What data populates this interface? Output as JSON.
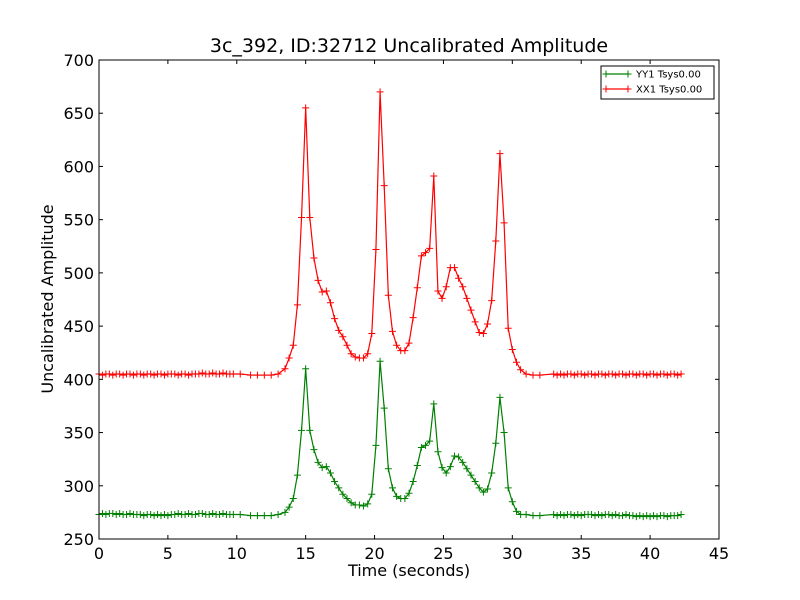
{
  "chart_data": {
    "type": "line",
    "title": "3c_392, ID:32712 Uncalibrated Amplitude",
    "xlabel": "Time (seconds)",
    "ylabel": "Uncalibrated Amplitude",
    "xlim": [
      0,
      45
    ],
    "ylim": [
      250,
      700
    ],
    "xticks": [
      0,
      5,
      10,
      15,
      20,
      25,
      30,
      35,
      40,
      45
    ],
    "yticks": [
      250,
      300,
      350,
      400,
      450,
      500,
      550,
      600,
      650,
      700
    ],
    "xtick_labels": [
      "0",
      "5",
      "10",
      "15",
      "20",
      "25",
      "30",
      "35",
      "40",
      "45"
    ],
    "ytick_labels": [
      "250",
      "300",
      "350",
      "400",
      "450",
      "500",
      "550",
      "600",
      "650",
      "700"
    ],
    "grid": false,
    "legend_position": "top-right",
    "marker": "plus",
    "series": [
      {
        "name": "YY1 Tsys0.00",
        "color": "#008000",
        "points": [
          [
            0,
            273
          ],
          [
            0.25,
            274
          ],
          [
            0.5,
            273
          ],
          [
            0.75,
            274
          ],
          [
            1,
            274
          ],
          [
            1.25,
            273
          ],
          [
            1.5,
            274
          ],
          [
            1.75,
            273
          ],
          [
            2,
            273
          ],
          [
            2.25,
            274
          ],
          [
            2.5,
            273
          ],
          [
            2.75,
            273
          ],
          [
            3,
            273
          ],
          [
            3.25,
            272
          ],
          [
            3.5,
            273
          ],
          [
            3.75,
            273
          ],
          [
            4,
            272
          ],
          [
            4.25,
            273
          ],
          [
            4.5,
            272
          ],
          [
            4.75,
            273
          ],
          [
            5,
            272
          ],
          [
            5.25,
            273
          ],
          [
            5.5,
            273
          ],
          [
            5.75,
            274
          ],
          [
            6,
            273
          ],
          [
            6.25,
            273
          ],
          [
            6.5,
            274
          ],
          [
            6.75,
            273
          ],
          [
            7,
            273
          ],
          [
            7.25,
            274
          ],
          [
            7.5,
            274
          ],
          [
            7.75,
            273
          ],
          [
            8,
            273
          ],
          [
            8.25,
            274
          ],
          [
            8.5,
            273
          ],
          [
            8.75,
            273
          ],
          [
            9,
            274
          ],
          [
            9.25,
            273
          ],
          [
            9.5,
            273
          ],
          [
            9.75,
            273
          ],
          [
            10.25,
            273
          ],
          [
            11,
            272
          ],
          [
            11.5,
            272
          ],
          [
            12,
            272
          ],
          [
            12.5,
            272
          ],
          [
            13,
            273
          ],
          [
            13.5,
            275
          ],
          [
            13.8,
            280
          ],
          [
            14.1,
            288
          ],
          [
            14.4,
            310
          ],
          [
            14.7,
            352
          ],
          [
            15.0,
            410
          ],
          [
            15.3,
            352
          ],
          [
            15.6,
            334
          ],
          [
            15.9,
            322
          ],
          [
            16.2,
            317
          ],
          [
            16.5,
            318
          ],
          [
            16.8,
            312
          ],
          [
            17.1,
            304
          ],
          [
            17.4,
            298
          ],
          [
            17.7,
            292
          ],
          [
            18.0,
            288
          ],
          [
            18.3,
            284
          ],
          [
            18.6,
            282
          ],
          [
            18.9,
            282
          ],
          [
            19.2,
            281
          ],
          [
            19.5,
            283
          ],
          [
            19.8,
            292
          ],
          [
            20.1,
            338
          ],
          [
            20.4,
            417
          ],
          [
            20.7,
            373
          ],
          [
            21.0,
            316
          ],
          [
            21.3,
            298
          ],
          [
            21.6,
            290
          ],
          [
            21.9,
            288
          ],
          [
            22.2,
            288
          ],
          [
            22.5,
            293
          ],
          [
            22.8,
            304
          ],
          [
            23.1,
            319
          ],
          [
            23.4,
            336
          ],
          [
            23.7,
            338
          ],
          [
            24.0,
            342
          ],
          [
            24.3,
            377
          ],
          [
            24.6,
            332
          ],
          [
            24.9,
            317
          ],
          [
            25.2,
            312
          ],
          [
            25.5,
            318
          ],
          [
            25.8,
            328
          ],
          [
            26.1,
            327
          ],
          [
            26.4,
            322
          ],
          [
            26.7,
            316
          ],
          [
            27.0,
            310
          ],
          [
            27.3,
            304
          ],
          [
            27.6,
            298
          ],
          [
            27.9,
            294
          ],
          [
            28.2,
            297
          ],
          [
            28.5,
            312
          ],
          [
            28.8,
            340
          ],
          [
            29.1,
            383
          ],
          [
            29.4,
            350
          ],
          [
            29.7,
            298
          ],
          [
            30.0,
            285
          ],
          [
            30.3,
            276
          ],
          [
            30.6,
            273
          ],
          [
            31,
            273
          ],
          [
            31.5,
            272
          ],
          [
            32,
            272
          ],
          [
            33,
            273
          ],
          [
            33.25,
            272
          ],
          [
            33.5,
            273
          ],
          [
            33.75,
            272
          ],
          [
            34,
            273
          ],
          [
            34.25,
            273
          ],
          [
            34.5,
            272
          ],
          [
            34.75,
            273
          ],
          [
            35,
            272
          ],
          [
            35.25,
            273
          ],
          [
            35.5,
            273
          ],
          [
            35.75,
            273
          ],
          [
            36,
            272
          ],
          [
            36.25,
            273
          ],
          [
            36.5,
            272
          ],
          [
            36.75,
            273
          ],
          [
            37,
            273
          ],
          [
            37.25,
            272
          ],
          [
            37.5,
            273
          ],
          [
            37.75,
            272
          ],
          [
            38,
            272
          ],
          [
            38.25,
            273
          ],
          [
            38.5,
            272
          ],
          [
            38.75,
            272
          ],
          [
            39,
            271
          ],
          [
            39.25,
            272
          ],
          [
            39.5,
            271
          ],
          [
            39.75,
            272
          ],
          [
            40,
            271
          ],
          [
            40.25,
            272
          ],
          [
            40.5,
            271
          ],
          [
            40.75,
            272
          ],
          [
            41,
            272
          ],
          [
            41.25,
            271
          ],
          [
            41.5,
            272
          ],
          [
            41.75,
            272
          ],
          [
            42,
            272
          ],
          [
            42.25,
            273
          ]
        ]
      },
      {
        "name": "XX1 Tsys0.00",
        "color": "#ff0000",
        "points": [
          [
            0,
            405
          ],
          [
            0.25,
            404
          ],
          [
            0.5,
            405
          ],
          [
            0.75,
            405
          ],
          [
            1,
            404
          ],
          [
            1.25,
            405
          ],
          [
            1.5,
            405
          ],
          [
            1.75,
            404
          ],
          [
            2,
            405
          ],
          [
            2.25,
            405
          ],
          [
            2.5,
            404
          ],
          [
            2.75,
            405
          ],
          [
            3,
            405
          ],
          [
            3.25,
            404
          ],
          [
            3.5,
            405
          ],
          [
            3.75,
            405
          ],
          [
            4,
            404
          ],
          [
            4.25,
            405
          ],
          [
            4.5,
            405
          ],
          [
            4.75,
            404
          ],
          [
            5,
            405
          ],
          [
            5.25,
            405
          ],
          [
            5.5,
            405
          ],
          [
            5.75,
            404
          ],
          [
            6,
            405
          ],
          [
            6.25,
            405
          ],
          [
            6.5,
            404
          ],
          [
            6.75,
            405
          ],
          [
            7,
            405
          ],
          [
            7.25,
            405
          ],
          [
            7.5,
            406
          ],
          [
            7.75,
            405
          ],
          [
            8,
            405
          ],
          [
            8.25,
            406
          ],
          [
            8.5,
            405
          ],
          [
            8.75,
            405
          ],
          [
            9,
            406
          ],
          [
            9.25,
            405
          ],
          [
            9.5,
            405
          ],
          [
            9.75,
            405
          ],
          [
            10.25,
            405
          ],
          [
            11,
            404
          ],
          [
            11.5,
            404
          ],
          [
            12,
            404
          ],
          [
            12.5,
            404
          ],
          [
            13,
            405
          ],
          [
            13.5,
            410
          ],
          [
            13.8,
            420
          ],
          [
            14.1,
            432
          ],
          [
            14.4,
            470
          ],
          [
            14.7,
            552
          ],
          [
            15.0,
            655
          ],
          [
            15.3,
            552
          ],
          [
            15.6,
            514
          ],
          [
            15.9,
            493
          ],
          [
            16.2,
            482
          ],
          [
            16.5,
            483
          ],
          [
            16.8,
            472
          ],
          [
            17.1,
            457
          ],
          [
            17.4,
            446
          ],
          [
            17.7,
            440
          ],
          [
            18.0,
            432
          ],
          [
            18.3,
            424
          ],
          [
            18.6,
            421
          ],
          [
            18.9,
            420
          ],
          [
            19.2,
            420
          ],
          [
            19.5,
            424
          ],
          [
            19.8,
            443
          ],
          [
            20.1,
            522
          ],
          [
            20.4,
            670
          ],
          [
            20.7,
            582
          ],
          [
            21.0,
            479
          ],
          [
            21.3,
            445
          ],
          [
            21.6,
            432
          ],
          [
            21.9,
            427
          ],
          [
            22.2,
            427
          ],
          [
            22.5,
            434
          ],
          [
            22.8,
            458
          ],
          [
            23.1,
            486
          ],
          [
            23.4,
            516
          ],
          [
            23.7,
            519
          ],
          [
            24.0,
            523
          ],
          [
            24.3,
            591
          ],
          [
            24.6,
            483
          ],
          [
            24.9,
            476
          ],
          [
            25.2,
            487
          ],
          [
            25.5,
            505
          ],
          [
            25.8,
            505
          ],
          [
            26.1,
            495
          ],
          [
            26.4,
            487
          ],
          [
            26.7,
            476
          ],
          [
            27.0,
            465
          ],
          [
            27.3,
            454
          ],
          [
            27.6,
            444
          ],
          [
            27.9,
            443
          ],
          [
            28.2,
            452
          ],
          [
            28.5,
            474
          ],
          [
            28.8,
            530
          ],
          [
            29.1,
            612
          ],
          [
            29.4,
            547
          ],
          [
            29.7,
            448
          ],
          [
            30.0,
            428
          ],
          [
            30.3,
            416
          ],
          [
            30.6,
            409
          ],
          [
            31,
            405
          ],
          [
            31.5,
            404
          ],
          [
            32,
            404
          ],
          [
            33,
            405
          ],
          [
            33.25,
            404
          ],
          [
            33.5,
            405
          ],
          [
            33.75,
            404
          ],
          [
            34,
            405
          ],
          [
            34.25,
            405
          ],
          [
            34.5,
            404
          ],
          [
            34.75,
            405
          ],
          [
            35,
            405
          ],
          [
            35.25,
            404
          ],
          [
            35.5,
            405
          ],
          [
            35.75,
            405
          ],
          [
            36,
            404
          ],
          [
            36.25,
            405
          ],
          [
            36.5,
            405
          ],
          [
            36.75,
            404
          ],
          [
            37,
            405
          ],
          [
            37.25,
            405
          ],
          [
            37.5,
            404
          ],
          [
            37.75,
            405
          ],
          [
            38,
            405
          ],
          [
            38.25,
            404
          ],
          [
            38.5,
            405
          ],
          [
            38.75,
            405
          ],
          [
            39,
            404
          ],
          [
            39.25,
            405
          ],
          [
            39.5,
            405
          ],
          [
            39.75,
            404
          ],
          [
            40,
            405
          ],
          [
            40.25,
            405
          ],
          [
            40.5,
            404
          ],
          [
            40.75,
            405
          ],
          [
            41,
            405
          ],
          [
            41.25,
            404
          ],
          [
            41.5,
            405
          ],
          [
            41.75,
            405
          ],
          [
            42,
            404
          ],
          [
            42.25,
            405
          ]
        ]
      }
    ]
  }
}
